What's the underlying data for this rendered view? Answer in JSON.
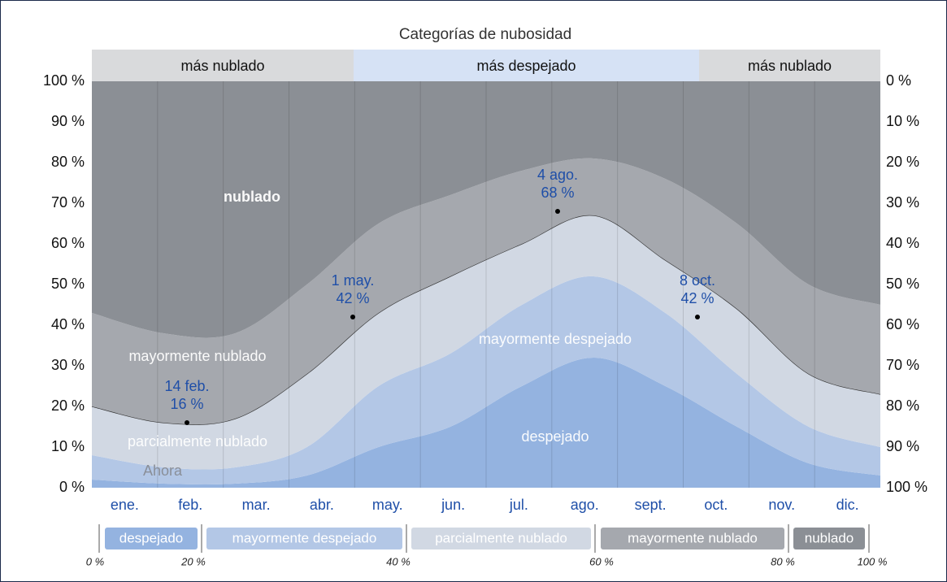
{
  "chart_data": {
    "type": "stacked_area",
    "title": "Categorías de nubosidad",
    "categories": [
      "ene.",
      "feb.",
      "mar.",
      "abr.",
      "may.",
      "jun.",
      "jul.",
      "ago.",
      "sept.",
      "oct.",
      "nov.",
      "dic."
    ],
    "series": [
      {
        "name": "despejado",
        "color": "#94b3e0",
        "values": [
          2,
          1,
          1,
          3,
          10,
          15,
          25,
          32,
          25,
          15,
          6,
          3
        ]
      },
      {
        "name": "mayormente despejado",
        "color": "#b3c7e6",
        "values": [
          6,
          4,
          4,
          7,
          15,
          18,
          20,
          20,
          18,
          13,
          9,
          7
        ]
      },
      {
        "name": "parcialmente nublado",
        "color": "#d1d8e3",
        "values": [
          12,
          11,
          12,
          18,
          18,
          19,
          15,
          15,
          13,
          16,
          13,
          13
        ]
      },
      {
        "name": "mayormente nublado",
        "color": "#a5a8ae",
        "values": [
          23,
          22,
          21,
          22,
          22,
          20,
          18,
          14,
          20,
          21,
          22,
          22
        ]
      },
      {
        "name": "nublado",
        "color": "#8b8f95",
        "values": [
          57,
          62,
          62,
          50,
          35,
          28,
          22,
          19,
          24,
          35,
          50,
          55
        ]
      }
    ],
    "ylim": [
      0,
      100
    ],
    "yticks": [
      {
        "value": 0,
        "label": "0 %"
      },
      {
        "value": 10,
        "label": "10 %"
      },
      {
        "value": 20,
        "label": "20 %"
      },
      {
        "value": 30,
        "label": "30 %"
      },
      {
        "value": 40,
        "label": "40 %"
      },
      {
        "value": 50,
        "label": "50 %"
      },
      {
        "value": 60,
        "label": "60 %"
      },
      {
        "value": 70,
        "label": "70 %"
      },
      {
        "value": 80,
        "label": "80 %"
      },
      {
        "value": 90,
        "label": "90 %"
      },
      {
        "value": 100,
        "label": "100 %"
      }
    ],
    "y2lim": [
      100,
      0
    ],
    "y2ticks": [
      {
        "value": 100,
        "label": "100 %"
      },
      {
        "value": 90,
        "label": "90 %"
      },
      {
        "value": 80,
        "label": "80 %"
      },
      {
        "value": 70,
        "label": "70 %"
      },
      {
        "value": 60,
        "label": "60 %"
      },
      {
        "value": 50,
        "label": "50 %"
      },
      {
        "value": 40,
        "label": "40 %"
      },
      {
        "value": 30,
        "label": "30 %"
      },
      {
        "value": 20,
        "label": "20 %"
      },
      {
        "value": 10,
        "label": "10 %"
      },
      {
        "value": 0,
        "label": "0 %"
      }
    ],
    "bands": [
      "más nublado",
      "más despejado",
      "más nublado"
    ],
    "annotations": [
      {
        "label": "14 feb.",
        "value": 16,
        "value_label": "16 %"
      },
      {
        "label": "1 may.",
        "value": 42,
        "value_label": "42 %"
      },
      {
        "label": "4 ago.",
        "value": 68,
        "value_label": "68 %"
      },
      {
        "label": "8 oct.",
        "value": 42,
        "value_label": "42 %"
      }
    ],
    "now_label": "Ahora",
    "legend_ticks": [
      "0 %",
      "20 %",
      "40 %",
      "60 %",
      "80 %",
      "100 %"
    ]
  }
}
